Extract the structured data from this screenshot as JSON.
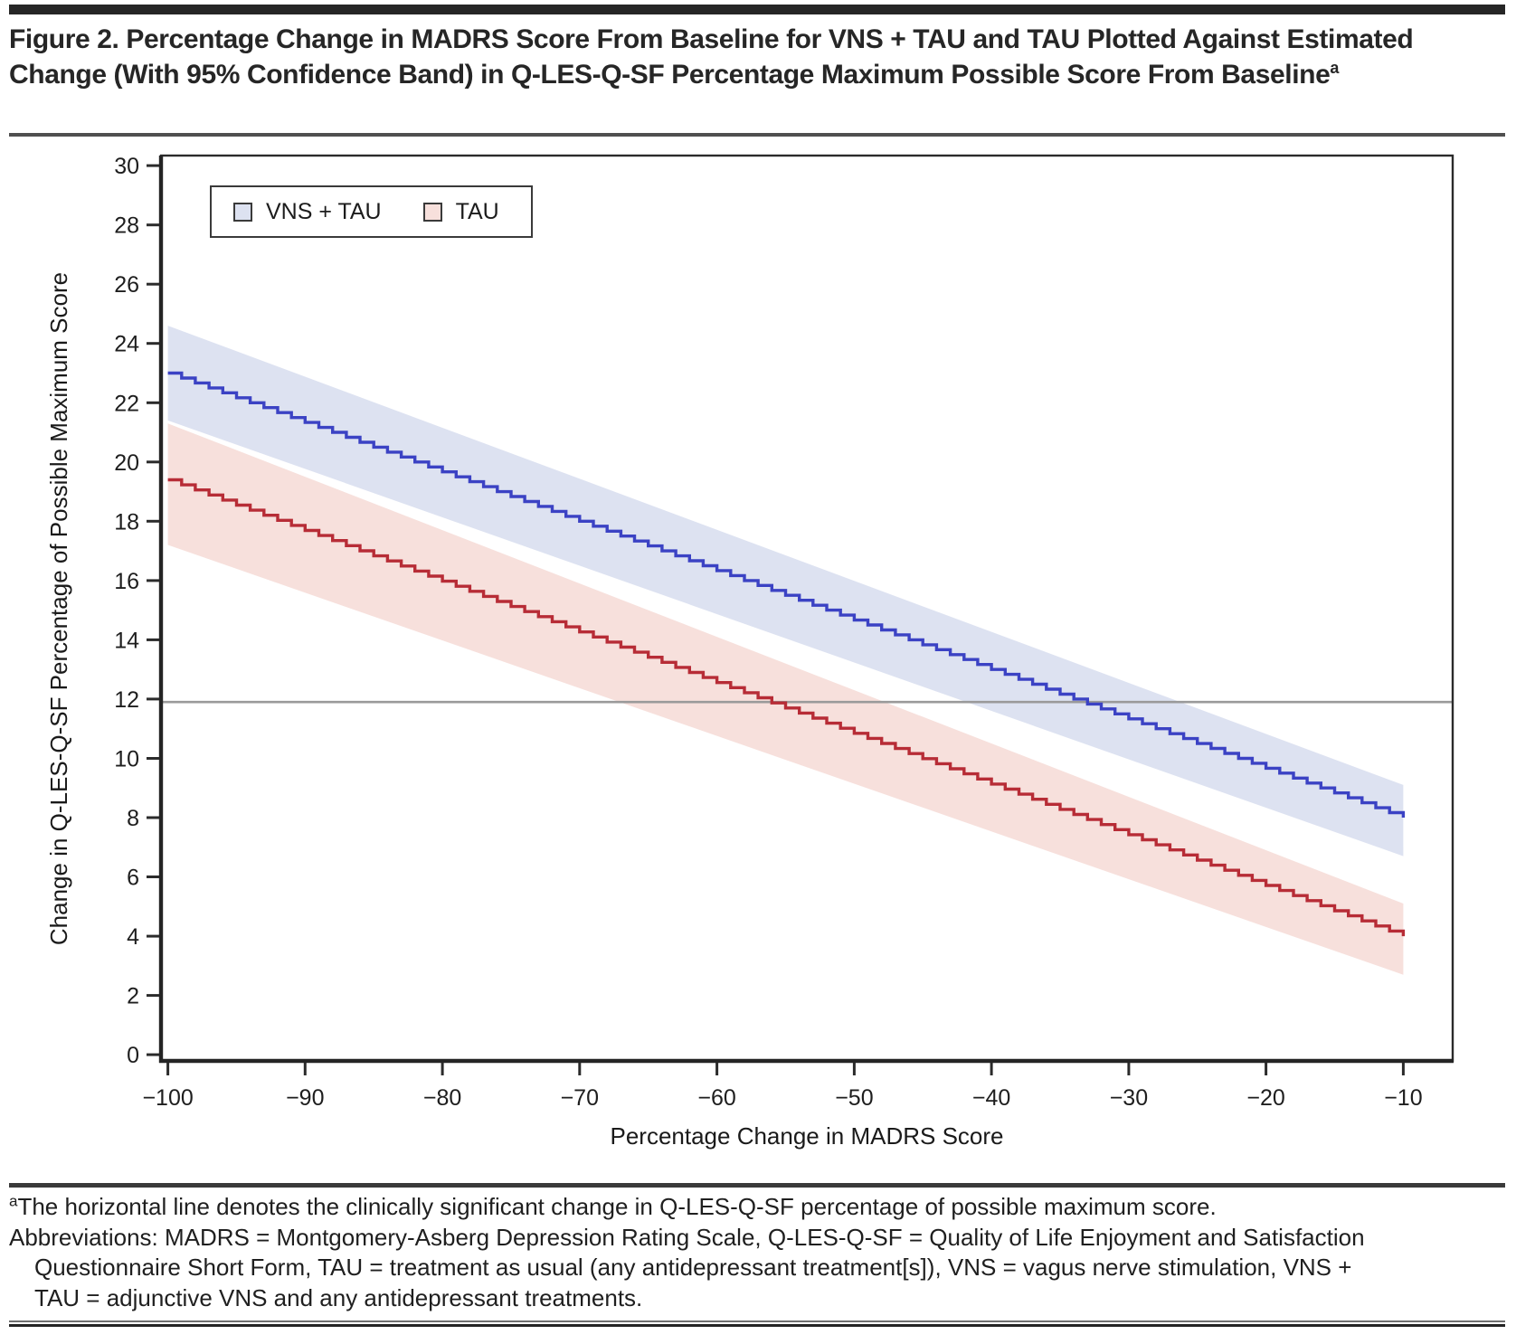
{
  "figure": {
    "title": "Figure 2. Percentage Change in MADRS Score From Baseline for VNS + TAU and TAU Plotted Against Estimated Change (With 95% Confidence Band) in Q-LES-Q-SF Percentage Maximum Possible Score From Baseline",
    "title_superscript": "a"
  },
  "footnotes": {
    "note1_marker": "a",
    "note1": "The horizontal line denotes the clinically significant change in Q-LES-Q-SF percentage of possible maximum score.",
    "abbreviations": "Abbreviations: MADRS = Montgomery-Asberg Depression Rating Scale, Q-LES-Q-SF = Quality of Life Enjoyment and Satisfaction Questionnaire Short Form, TAU = treatment as usual (any antidepressant treatment[s]), VNS = vagus nerve stimulation, VNS + TAU = adjunctive VNS and any antidepressant treatments."
  },
  "chart_data": {
    "type": "line",
    "subtype": "step-function-with-confidence-bands",
    "title": "",
    "xlabel": "Percentage Change in MADRS Score",
    "ylabel": "Change in Q-LES-Q-SF Percentage of Possible Maximum Score",
    "xlim": [
      -100.5,
      -6.4
    ],
    "ylim": [
      -0.21,
      30.34
    ],
    "x_ticks": [
      -100,
      -90,
      -80,
      -70,
      -60,
      -50,
      -40,
      -30,
      -20,
      -10
    ],
    "y_ticks": [
      0,
      2,
      4,
      6,
      8,
      10,
      12,
      14,
      16,
      18,
      20,
      22,
      24,
      26,
      28,
      30
    ],
    "x_data_range": [
      -100,
      -10
    ],
    "step_width": 1,
    "grid": false,
    "legend_position": "top-left-inside",
    "reference_line": {
      "y": 11.9,
      "color": "#9a9a9a"
    },
    "series": [
      {
        "name": "VNS + TAU",
        "line_color": "#3b42c4",
        "band_color": "#dde2f1",
        "values_endpoints": [
          23.0,
          8.0
        ],
        "ci_upper_endpoints": [
          24.6,
          9.1
        ],
        "ci_lower_endpoints": [
          21.4,
          6.7
        ]
      },
      {
        "name": "TAU",
        "line_color": "#b72c36",
        "band_color": "#f7e0dc",
        "values_endpoints": [
          19.4,
          4.0
        ],
        "ci_upper_endpoints": [
          21.3,
          5.1
        ],
        "ci_lower_endpoints": [
          17.2,
          2.7
        ]
      }
    ]
  },
  "rules_color": "#3a3a3a",
  "header_bar_color": "#262626"
}
